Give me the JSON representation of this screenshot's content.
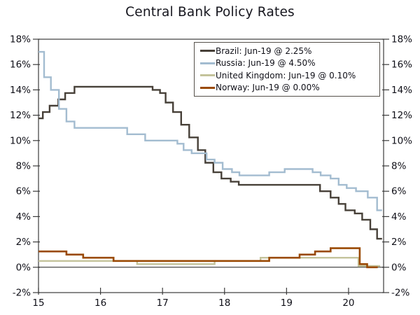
{
  "title": "Central Bank Policy Rates",
  "axes": {
    "x": {
      "tick_labels": [
        "15",
        "16",
        "17",
        "18",
        "19",
        "20"
      ],
      "tick_values": [
        15,
        16,
        17,
        18,
        19,
        20
      ],
      "range": [
        15,
        20.565
      ]
    },
    "y": {
      "tick_labels": [
        "18%",
        "16%",
        "14%",
        "12%",
        "10%",
        "8%",
        "6%",
        "4%",
        "2%",
        "0%",
        "-2%"
      ],
      "tick_values": [
        18,
        16,
        14,
        12,
        10,
        8,
        6,
        4,
        2,
        0,
        -2
      ],
      "range": [
        -2,
        18
      ],
      "mirrored_right": true
    },
    "zero_line": true
  },
  "legend": {
    "position": "top-right",
    "items": [
      {
        "label": "Brazil: Jun-19 @ 2.25%",
        "color": "#474038"
      },
      {
        "label": "Russia: Jun-19 @ 4.50%",
        "color": "#a3bcd0"
      },
      {
        "label": "United Kingdom: Jun-19 @ 0.10%",
        "color": "#c4c39b"
      },
      {
        "label": "Norway: Jun-19 @ 0.00%",
        "color": "#9a4a05"
      }
    ]
  },
  "chart_data": {
    "type": "line",
    "step": "post",
    "title": "Central Bank Policy Rates",
    "xlabel": "",
    "ylabel": "",
    "xlim": [
      15,
      20.565
    ],
    "ylim": [
      -2,
      18
    ],
    "grid": false,
    "legend_position": "top-right",
    "series": [
      {
        "name": "Brazil",
        "color": "#474038",
        "stroke_width": 2.4,
        "end_x": 20.54,
        "points": [
          [
            15.0,
            11.75
          ],
          [
            15.07,
            12.25
          ],
          [
            15.18,
            12.75
          ],
          [
            15.32,
            13.25
          ],
          [
            15.43,
            13.75
          ],
          [
            15.58,
            14.25
          ],
          [
            16.84,
            14.0
          ],
          [
            16.96,
            13.75
          ],
          [
            17.05,
            13.0
          ],
          [
            17.17,
            12.25
          ],
          [
            17.3,
            11.25
          ],
          [
            17.43,
            10.25
          ],
          [
            17.57,
            9.25
          ],
          [
            17.69,
            8.25
          ],
          [
            17.82,
            7.5
          ],
          [
            17.95,
            7.0
          ],
          [
            18.1,
            6.75
          ],
          [
            18.23,
            6.5
          ],
          [
            19.54,
            6.0
          ],
          [
            19.71,
            5.5
          ],
          [
            19.84,
            5.0
          ],
          [
            19.95,
            4.5
          ],
          [
            20.1,
            4.25
          ],
          [
            20.22,
            3.75
          ],
          [
            20.35,
            3.0
          ],
          [
            20.46,
            2.25
          ]
        ]
      },
      {
        "name": "Russia",
        "color": "#a3bcd0",
        "stroke_width": 2.4,
        "end_x": 20.54,
        "points": [
          [
            15.0,
            17.0
          ],
          [
            15.09,
            15.0
          ],
          [
            15.2,
            14.0
          ],
          [
            15.33,
            12.5
          ],
          [
            15.45,
            11.5
          ],
          [
            15.58,
            11.0
          ],
          [
            16.43,
            10.5
          ],
          [
            16.72,
            10.0
          ],
          [
            17.24,
            9.75
          ],
          [
            17.34,
            9.25
          ],
          [
            17.47,
            9.0
          ],
          [
            17.71,
            8.5
          ],
          [
            17.84,
            8.25
          ],
          [
            17.97,
            7.75
          ],
          [
            18.12,
            7.5
          ],
          [
            18.24,
            7.25
          ],
          [
            18.72,
            7.5
          ],
          [
            18.97,
            7.75
          ],
          [
            19.42,
            7.5
          ],
          [
            19.55,
            7.25
          ],
          [
            19.71,
            7.0
          ],
          [
            19.84,
            6.5
          ],
          [
            19.97,
            6.25
          ],
          [
            20.12,
            6.0
          ],
          [
            20.31,
            5.5
          ],
          [
            20.46,
            4.5
          ]
        ]
      },
      {
        "name": "United Kingdom",
        "color": "#c4c39b",
        "stroke_width": 2.4,
        "end_x": 20.51,
        "points": [
          [
            15.0,
            0.5
          ],
          [
            16.59,
            0.25
          ],
          [
            17.84,
            0.5
          ],
          [
            18.58,
            0.75
          ],
          [
            20.16,
            0.1
          ]
        ]
      },
      {
        "name": "Norway",
        "color": "#9a4a05",
        "stroke_width": 2.6,
        "end_x": 20.47,
        "points": [
          [
            15.0,
            1.25
          ],
          [
            15.45,
            1.0
          ],
          [
            15.72,
            0.75
          ],
          [
            16.21,
            0.5
          ],
          [
            18.72,
            0.75
          ],
          [
            19.21,
            1.0
          ],
          [
            19.46,
            1.25
          ],
          [
            19.71,
            1.5
          ],
          [
            20.18,
            0.25
          ],
          [
            20.3,
            0.0
          ]
        ]
      }
    ]
  },
  "style": {
    "axis_color": "#3b3b3b",
    "label_color": "#101018",
    "zero_line_color": "#1d1d1d",
    "background": "#ffffff"
  }
}
